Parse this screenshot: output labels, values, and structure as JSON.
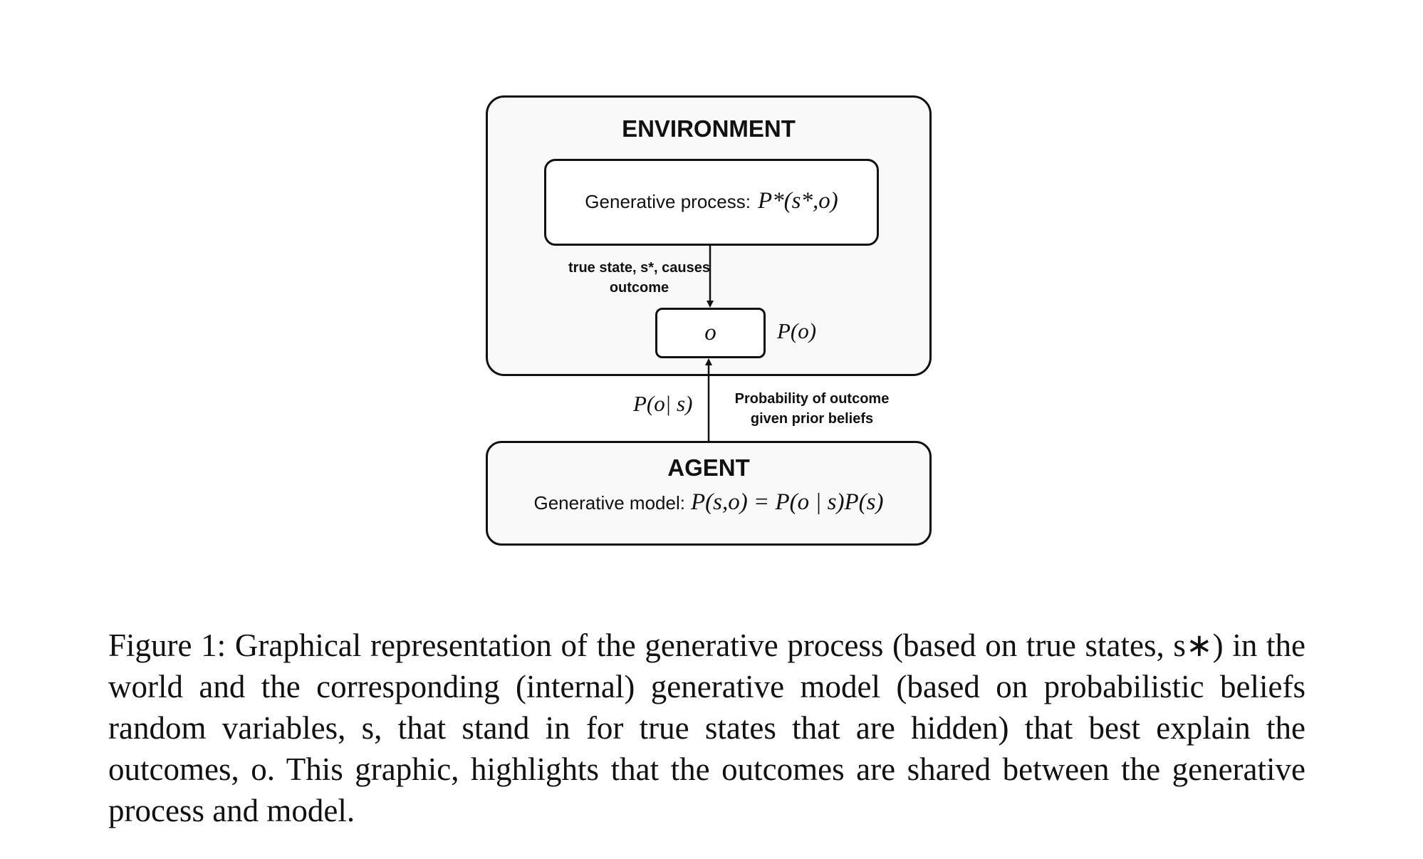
{
  "diagram": {
    "environment": {
      "title": "ENVIRONMENT",
      "process_label": "Generative process:",
      "process_formula": "P*(s*,o)"
    },
    "arrow_down_label": "true state, s*, causes outcome",
    "outcome": {
      "symbol": "o",
      "prob_label": "P(o)"
    },
    "arrow_up": {
      "math_label": "P(o| s)",
      "text_label": "Probability of outcome given prior beliefs"
    },
    "agent": {
      "title": "AGENT",
      "model_label": "Generative model:",
      "model_formula": "P(s,o) = P(o | s)P(s)"
    }
  },
  "caption": "Figure 1: Graphical representation of the generative process (based on true states, s∗) in the world and the corresponding (internal) generative model (based on probabilistic beliefs random variables, s, that stand in for true states that are hidden) that best explain the outcomes, o. This graphic, highlights that the outcomes are shared between the generative process and model.",
  "colors": {
    "stroke": "#111111",
    "box_fill": "#f9f9f9",
    "background": "#ffffff"
  }
}
